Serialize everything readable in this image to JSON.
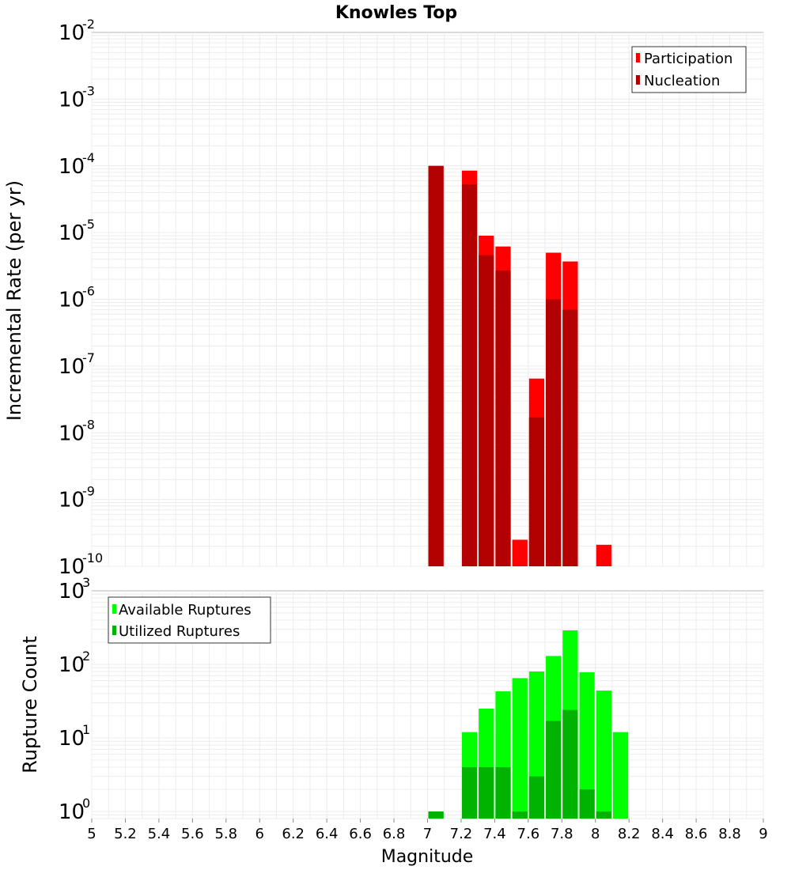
{
  "chart_data": [
    {
      "id": "rate",
      "type": "bar",
      "title": "Knowles Top",
      "xlabel": "",
      "ylabel": "Incremental Rate (per yr)",
      "yscale": "log",
      "ylim": [
        1e-10,
        0.01
      ],
      "xlim": [
        5,
        9
      ],
      "bar_width": 0.1,
      "grid": true,
      "legend_position": "top-right",
      "y_tick_base": "10",
      "y_tick_exponents": [
        "-10",
        "-9",
        "-8",
        "-7",
        "-6",
        "-5",
        "-4",
        "-3",
        "-2"
      ],
      "series": [
        {
          "name": "Participation",
          "color": "#ff0000",
          "x": [
            7.05,
            7.25,
            7.35,
            7.45,
            7.55,
            7.65,
            7.75,
            7.85,
            8.05
          ],
          "values": [
            0.0001,
            8.5e-05,
            9e-06,
            6.2e-06,
            2.5e-10,
            6.5e-08,
            5e-06,
            3.7e-06,
            2.1e-10
          ]
        },
        {
          "name": "Nucleation",
          "color": "#b30000",
          "x": [
            7.05,
            7.25,
            7.35,
            7.45,
            7.65,
            7.75,
            7.85
          ],
          "values": [
            0.0001,
            5.3e-05,
            4.6e-06,
            2.7e-06,
            1.7e-08,
            1e-06,
            7e-07
          ]
        }
      ]
    },
    {
      "id": "count",
      "type": "bar",
      "title": "",
      "xlabel": "Magnitude",
      "ylabel": "Rupture Count",
      "yscale": "log",
      "ylim": [
        0.8,
        1000
      ],
      "xlim": [
        5,
        9
      ],
      "bar_width": 0.1,
      "grid": true,
      "legend_position": "top-left",
      "x_ticks": [
        "5",
        "5.2",
        "5.4",
        "5.6",
        "5.8",
        "6",
        "6.2",
        "6.4",
        "6.6",
        "6.8",
        "7",
        "7.2",
        "7.4",
        "7.6",
        "7.8",
        "8",
        "8.2",
        "8.4",
        "8.6",
        "8.8",
        "9"
      ],
      "y_tick_base": "10",
      "y_tick_exponents": [
        "0",
        "1",
        "2",
        "3"
      ],
      "series": [
        {
          "name": "Available Ruptures",
          "color": "#00ff00",
          "x": [
            7.05,
            7.25,
            7.35,
            7.45,
            7.55,
            7.65,
            7.75,
            7.85,
            7.95,
            8.05,
            8.15
          ],
          "values": [
            1,
            12,
            25,
            43,
            65,
            80,
            130,
            290,
            78,
            44,
            12
          ]
        },
        {
          "name": "Utilized Ruptures",
          "color": "#00b300",
          "x": [
            7.05,
            7.25,
            7.35,
            7.45,
            7.55,
            7.65,
            7.75,
            7.85,
            7.95,
            8.05
          ],
          "values": [
            1,
            4,
            4,
            4,
            1,
            3,
            17,
            24,
            2,
            1
          ]
        }
      ]
    }
  ]
}
